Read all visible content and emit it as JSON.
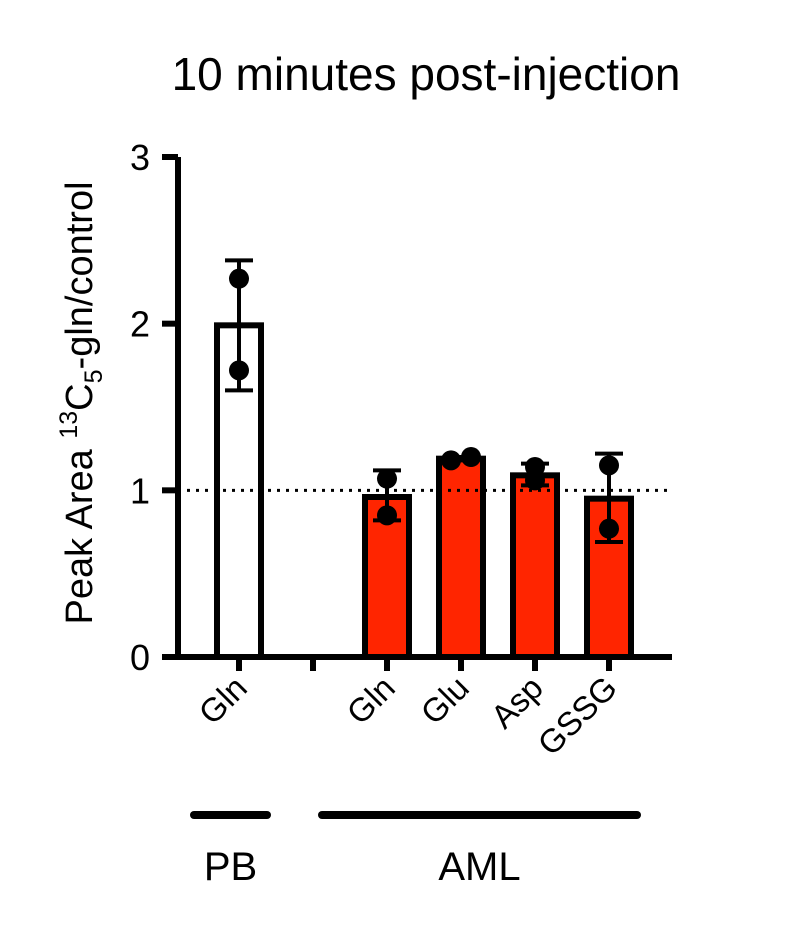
{
  "chart_data": {
    "type": "bar",
    "title": "10 minutes post-injection",
    "ylabel_parts": [
      "Peak Area ",
      "13",
      "C",
      "5",
      "-gln/control"
    ],
    "ylim": [
      0,
      3
    ],
    "yticks": [
      0,
      1,
      2,
      3
    ],
    "ytick_labels": [
      "0",
      "1",
      "2",
      "3"
    ],
    "reference_line": 1,
    "categories": [
      "Gln",
      "",
      "Gln",
      "Glu",
      "Asp",
      "GSSG"
    ],
    "bars": [
      {
        "category": "Gln",
        "group": "PB",
        "mean": 1.99,
        "err_low": 1.6,
        "err_high": 2.38,
        "points": [
          2.27,
          1.72
        ],
        "fill": "#ffffff"
      },
      {
        "category": "",
        "group": "",
        "mean": null,
        "err_low": null,
        "err_high": null,
        "points": [],
        "fill": "none"
      },
      {
        "category": "Gln",
        "group": "AML",
        "mean": 0.96,
        "err_low": 0.82,
        "err_high": 1.12,
        "points": [
          1.07,
          0.85
        ],
        "fill": "#ff2500"
      },
      {
        "category": "Glu",
        "group": "AML",
        "mean": 1.19,
        "err_low": 1.18,
        "err_high": 1.2,
        "points": [
          1.18,
          1.2
        ],
        "fill": "#ff2500"
      },
      {
        "category": "Asp",
        "group": "AML",
        "mean": 1.09,
        "err_low": 1.03,
        "err_high": 1.16,
        "points": [
          1.06,
          1.14
        ],
        "fill": "#ff2500"
      },
      {
        "category": "GSSG",
        "group": "AML",
        "mean": 0.95,
        "err_low": 0.69,
        "err_high": 1.22,
        "points": [
          1.15,
          0.77
        ],
        "fill": "#ff2500"
      }
    ],
    "groups": [
      {
        "label": "PB",
        "from": 0,
        "to": 0
      },
      {
        "label": "AML",
        "from": 2,
        "to": 5
      }
    ],
    "legend": "none",
    "grid": false
  }
}
